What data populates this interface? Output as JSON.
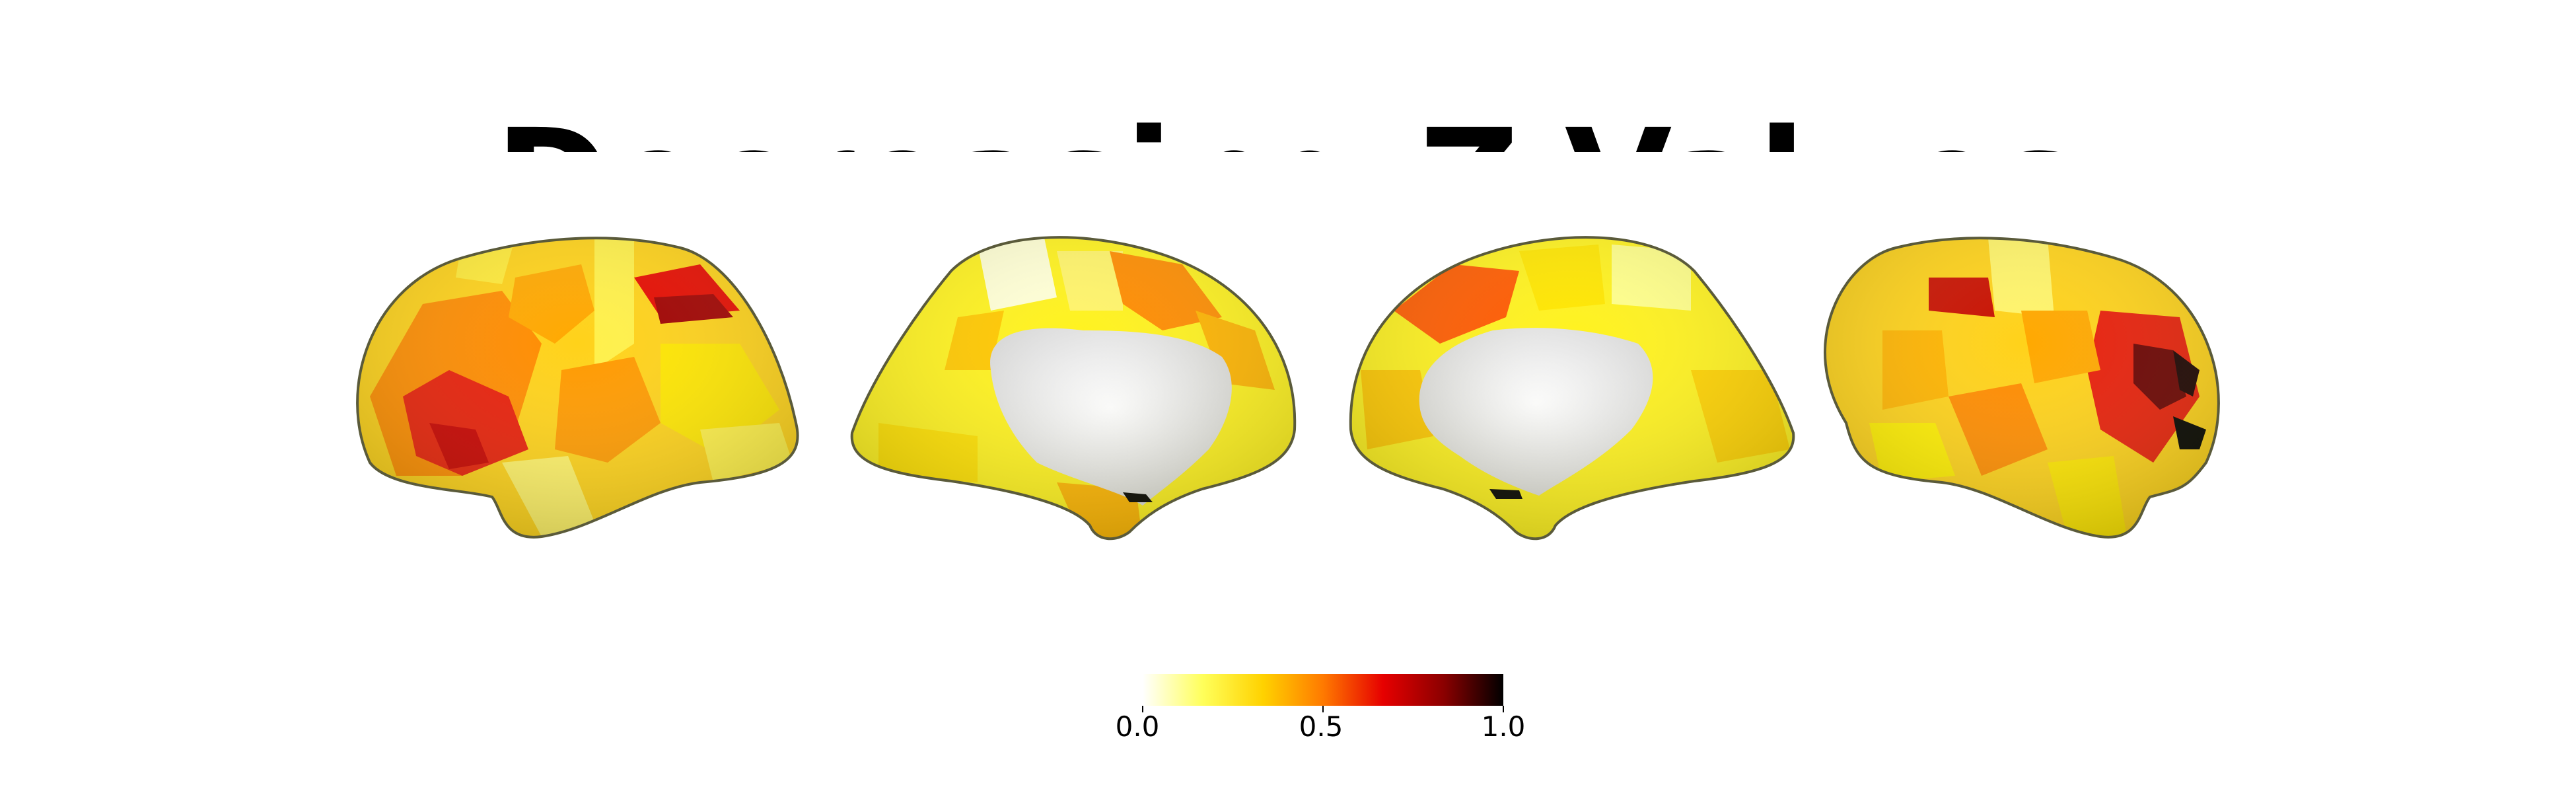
{
  "title": "Decreasing Z-Values",
  "colorbar": {
    "colormap": "hot_r",
    "stops": [
      "#ffffff",
      "#ffff5a",
      "#ffd200",
      "#ff7a00",
      "#e60000",
      "#8c0000",
      "#000000"
    ],
    "min": 0.0,
    "max": 1.0,
    "ticks": [
      "0.0",
      "0.5",
      "1.0"
    ]
  },
  "views": [
    "left-lateral",
    "left-medial",
    "right-medial",
    "right-lateral"
  ]
}
